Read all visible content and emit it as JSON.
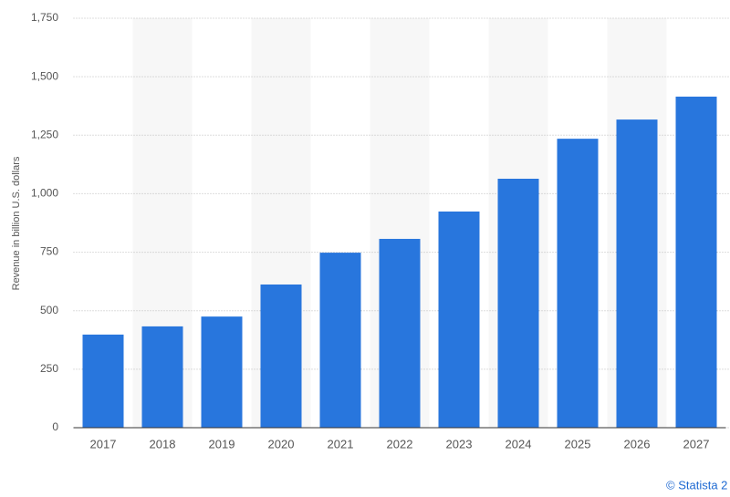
{
  "chart_data": {
    "type": "bar",
    "y_label": "Revenue in billion U.S. dollars",
    "credit": "© Statista 2",
    "categories": [
      "2017",
      "2018",
      "2019",
      "2020",
      "2021",
      "2022",
      "2023",
      "2024",
      "2025",
      "2026",
      "2027"
    ],
    "values": [
      398,
      433,
      475,
      612,
      748,
      807,
      924,
      1064,
      1235,
      1317,
      1415
    ],
    "color": "#2876dd",
    "ylim": [
      0,
      1750
    ],
    "yticks": [
      0,
      250,
      500,
      750,
      {
        "value": 1000,
        "label": "1,000"
      },
      {
        "value": 1250,
        "label": "1,250"
      },
      {
        "value": 1500,
        "label": "1,500"
      },
      {
        "value": 1750,
        "label": "1,750"
      }
    ],
    "grid": true
  }
}
